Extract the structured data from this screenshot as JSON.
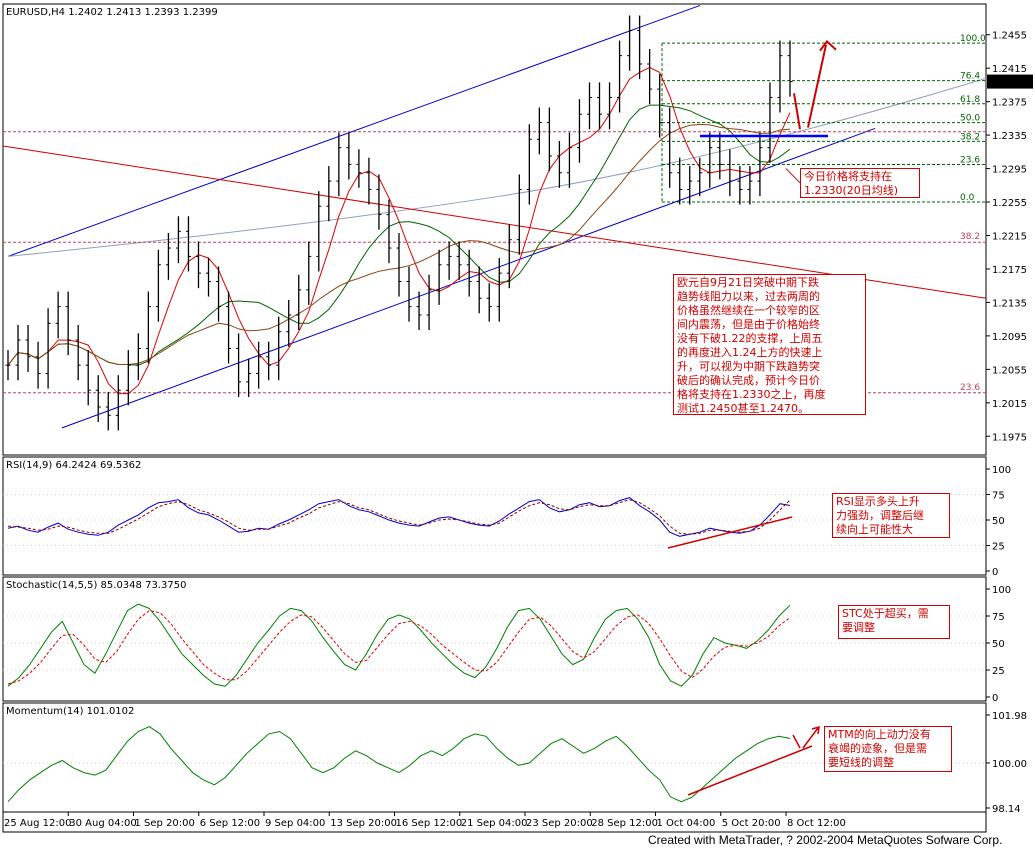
{
  "chart_data": [
    {
      "type": "line",
      "title": "EURUSD,H4  1.2402 1.2413 1.2393 1.2399",
      "subtype": "candlestick / OHLC bars with moving averages, trend channel and Fibonacci retracement",
      "ylim": [
        1.1955,
        1.2475
      ],
      "yticks": [
        "1.2455",
        "1.2415",
        "1.2375",
        "1.2335",
        "1.2295",
        "1.2255",
        "1.2215",
        "1.2175",
        "1.2135",
        "1.2095",
        "1.2055",
        "1.2015",
        "1.1975"
      ],
      "last_price": "1.2399",
      "close": [
        1.206,
        1.209,
        1.207,
        1.205,
        1.211,
        1.213,
        1.209,
        1.206,
        1.203,
        1.201,
        1.2,
        1.203,
        1.206,
        1.208,
        1.213,
        1.218,
        1.22,
        1.222,
        1.219,
        1.217,
        1.216,
        1.213,
        1.208,
        1.204,
        1.205,
        1.207,
        1.206,
        1.21,
        1.212,
        1.215,
        1.219,
        1.225,
        1.228,
        1.232,
        1.23,
        1.229,
        1.227,
        1.224,
        1.22,
        1.216,
        1.213,
        1.212,
        1.215,
        1.218,
        1.219,
        1.218,
        1.216,
        1.214,
        1.213,
        1.217,
        1.221,
        1.227,
        1.233,
        1.235,
        1.231,
        1.229,
        1.232,
        1.236,
        1.238,
        1.236,
        1.238,
        1.243,
        1.246,
        1.242,
        1.239,
        1.235,
        1.229,
        1.227,
        1.228,
        1.229,
        1.232,
        1.23,
        1.228,
        1.227,
        1.228,
        1.232,
        1.238,
        1.243,
        1.2399
      ],
      "ma_labels": [],
      "fib_levels": [
        {
          "label": "100.0"
        },
        {
          "label": "76.4"
        },
        {
          "label": "61.8"
        },
        {
          "label": "50.0"
        },
        {
          "label": "38.2"
        },
        {
          "label": "23.6"
        },
        {
          "label": "0.0"
        }
      ],
      "big_fib_labels": [
        "38.2",
        "23.6"
      ]
    },
    {
      "type": "line",
      "title": "RSI(14,9)  64.2424  69.5362",
      "ylim": [
        0,
        100
      ],
      "yticks": [
        "100",
        "75",
        "50",
        "25",
        "0"
      ],
      "series": [
        {
          "values": [
            42,
            44,
            40,
            38,
            43,
            47,
            41,
            38,
            36,
            35,
            38,
            45,
            50,
            55,
            62,
            67,
            68,
            70,
            62,
            57,
            55,
            50,
            44,
            38,
            39,
            42,
            41,
            46,
            50,
            55,
            60,
            66,
            68,
            70,
            64,
            60,
            58,
            54,
            50,
            47,
            45,
            44,
            48,
            52,
            53,
            50,
            47,
            45,
            44,
            49,
            56,
            62,
            68,
            70,
            62,
            58,
            60,
            65,
            67,
            63,
            64,
            69,
            72,
            64,
            58,
            50,
            38,
            34,
            36,
            38,
            42,
            40,
            38,
            37,
            39,
            45,
            55,
            66,
            64.24
          ]
        },
        {
          "values": [
            44,
            43,
            42,
            40,
            41,
            44,
            43,
            40,
            38,
            37,
            37,
            41,
            46,
            51,
            57,
            63,
            66,
            68,
            65,
            60,
            57,
            53,
            48,
            42,
            40,
            41,
            41,
            44,
            47,
            52,
            56,
            62,
            65,
            68,
            66,
            62,
            60,
            56,
            52,
            49,
            47,
            45,
            47,
            50,
            51,
            50,
            48,
            46,
            45,
            47,
            53,
            59,
            64,
            67,
            65,
            61,
            60,
            63,
            65,
            64,
            64,
            67,
            70,
            67,
            61,
            54,
            44,
            37,
            36,
            37,
            40,
            40,
            39,
            38,
            39,
            42,
            50,
            60,
            69.54
          ]
        }
      ],
      "note": "RSI显示多头上升\n力强劲，调整后继\n续向上可能性大"
    },
    {
      "type": "line",
      "title": "Stochastic(14,5,5)  85.0348  73.3750",
      "ylim": [
        0,
        100
      ],
      "yticks": [
        "100",
        "75",
        "50",
        "25",
        "0"
      ],
      "series": [
        {
          "values": [
            10,
            18,
            30,
            45,
            60,
            70,
            50,
            30,
            22,
            40,
            60,
            80,
            86,
            82,
            70,
            55,
            40,
            30,
            20,
            12,
            10,
            20,
            35,
            50,
            62,
            75,
            82,
            80,
            70,
            55,
            42,
            30,
            25,
            40,
            58,
            72,
            76,
            72,
            62,
            50,
            40,
            30,
            22,
            18,
            28,
            45,
            65,
            80,
            82,
            72,
            56,
            40,
            30,
            35,
            55,
            72,
            80,
            82,
            72,
            55,
            30,
            15,
            10,
            20,
            40,
            55,
            50,
            48,
            45,
            52,
            62,
            75,
            85.03
          ]
        },
        {
          "values": [
            12,
            15,
            22,
            32,
            45,
            57,
            58,
            48,
            35,
            32,
            42,
            58,
            72,
            80,
            78,
            68,
            54,
            42,
            30,
            22,
            16,
            16,
            24,
            36,
            48,
            60,
            70,
            76,
            74,
            64,
            52,
            40,
            32,
            34,
            46,
            58,
            68,
            70,
            66,
            58,
            48,
            40,
            32,
            25,
            24,
            32,
            46,
            60,
            72,
            74,
            66,
            54,
            42,
            36,
            42,
            54,
            66,
            74,
            76,
            68,
            54,
            38,
            24,
            18,
            26,
            38,
            46,
            48,
            47,
            50,
            56,
            66,
            73.38
          ]
        }
      ],
      "note": "STC处于超买，需\n要调整"
    },
    {
      "type": "line",
      "title": "Momentum(14)  101.0102",
      "ylim": [
        98.14,
        101.98
      ],
      "yticks": [
        "101.98",
        "100.00",
        "98.14"
      ],
      "series": [
        {
          "values": [
            98.4,
            98.9,
            99.3,
            99.6,
            99.9,
            100.1,
            99.8,
            99.6,
            99.5,
            99.7,
            100.3,
            100.9,
            101.3,
            101.5,
            101.2,
            100.6,
            100.1,
            99.6,
            99.3,
            99.1,
            99.4,
            99.9,
            100.4,
            100.8,
            101.2,
            101.3,
            101.0,
            100.4,
            99.8,
            99.6,
            99.8,
            100.2,
            100.5,
            100.3,
            100.0,
            99.8,
            99.6,
            99.9,
            100.3,
            100.5,
            100.3,
            100.6,
            101.0,
            101.2,
            101.1,
            100.6,
            100.2,
            99.9,
            100.0,
            100.4,
            100.8,
            101.0,
            100.7,
            100.4,
            100.6,
            100.9,
            101.1,
            100.7,
            100.2,
            99.7,
            99.3,
            98.6,
            98.4,
            98.6,
            99.0,
            99.4,
            99.8,
            100.2,
            100.5,
            100.8,
            101.0,
            101.1,
            101.01
          ]
        }
      ],
      "note": "MTM的向上动力没有\n衰竭的迹象，但是需\n要短线的调整"
    }
  ],
  "xaxis_labels": [
    "25 Aug 12:00",
    "30 Aug 04:00",
    "1 Sep 20:00",
    "6 Sep 12:00",
    "9 Sep 04:00",
    "13 Sep 20:00",
    "16 Sep 12:00",
    "21 Sep 04:00",
    "23 Sep 20:00",
    "28 Sep 12:00",
    "1 Oct 04:00",
    "5 Oct 20:00",
    "8 Oct 12:00"
  ],
  "notes": {
    "main_small": "今日价格将支持在\n1.2330(20日均线)",
    "main_large": "欧元自9月21日突破中期下跌\n趋势线阻力以来，过去两周的\n价格虽然继续在一个较窄的区\n间内震荡，但是由于价格始终\n没有下破1.22的支撑，上周五\n的再度进入1.24上方的快速上\n升，可以视为中期下跌趋势突\n破后的确认完成，预计今日价\n格将支持在1.2330之上，再度\n测试1.2450甚至1.2470。"
  },
  "footer": "Created with MetaTrader, ? 2002-2004 MetaQuotes Sofware Corp.",
  "colors": {
    "price": "#000000",
    "ma20": "#e00000",
    "ma50": "#006400",
    "ma100": "#8b4513",
    "channel": "#0000cc",
    "trend": "#cc0000",
    "fib": "#006400",
    "grid": "#bbbbbb",
    "annotation": "#d00000"
  }
}
